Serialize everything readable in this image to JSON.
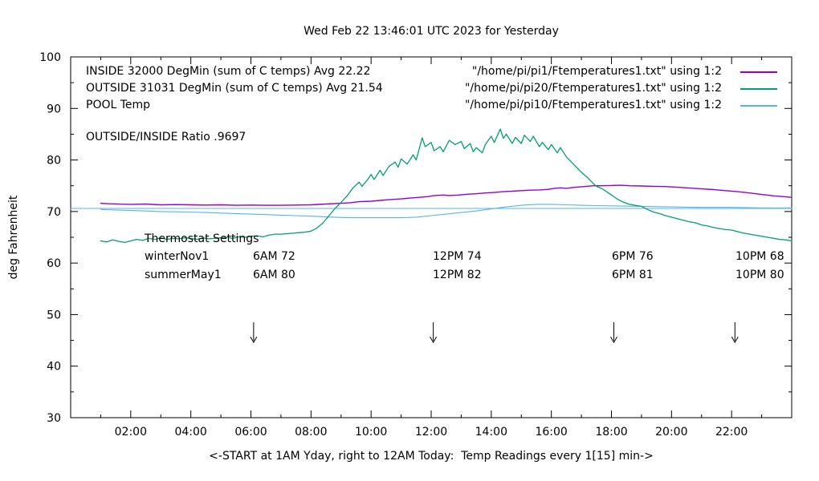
{
  "title": "Wed Feb 22 13:46:01 UTC 2023 for Yesterday",
  "axes": {
    "y_label": "deg Fahrenheit",
    "x_label": "<-START at 1AM Yday, right to 12AM Today:  Temp Readings every 1[15] min->"
  },
  "legend": {
    "rows": [
      {
        "left": "INSIDE 32000 DegMin (sum of C temps) Avg 22.22",
        "right": "\"/home/pi/pi1/Ftemperatures1.txt\" using 1:2"
      },
      {
        "left": "OUTSIDE 31031 DegMin (sum of C temps) Avg 21.54",
        "right": "\"/home/pi/pi20/Ftemperatures1.txt\" using 1:2"
      },
      {
        "left": "POOL Temp",
        "right": "\"/home/pi/pi10/Ftemperatures1.txt\" using 1:2"
      }
    ]
  },
  "annotations": {
    "ratio": "OUTSIDE/INSIDE Ratio .9697",
    "thermostat_title": "Thermostat Settings",
    "rows": [
      {
        "label": "winterNov1",
        "cols": [
          "6AM 72",
          "12PM 74",
          "6PM 76",
          "10PM 68"
        ]
      },
      {
        "label": "summerMay1",
        "cols": [
          "6AM 80",
          "12PM 82",
          "6PM 81",
          "10PM 80"
        ]
      }
    ]
  },
  "colors": {
    "inside": "#9400D3",
    "outside": "#009E73",
    "pool": "#56B4E9",
    "axis": "#000000"
  },
  "chart_data": {
    "type": "line",
    "title": "Wed Feb 22 13:46:01 UTC 2023 for Yesterday",
    "xlabel": "<-START at 1AM Yday, right to 12AM Today:  Temp Readings every 1[15] min->",
    "ylabel": "deg Fahrenheit",
    "x_unit": "hour of day (1 = 1AM yesterday, 24 = 12AM today)",
    "xlim": [
      0,
      24
    ],
    "ylim": [
      30,
      100
    ],
    "grid": false,
    "legend_position": "top inside",
    "x_major_ticks": [
      {
        "v": 2,
        "label": "02:00"
      },
      {
        "v": 4,
        "label": "04:00"
      },
      {
        "v": 6,
        "label": "06:00"
      },
      {
        "v": 8,
        "label": "08:00"
      },
      {
        "v": 10,
        "label": "10:00"
      },
      {
        "v": 12,
        "label": "12:00"
      },
      {
        "v": 14,
        "label": "14:00"
      },
      {
        "v": 16,
        "label": "16:00"
      },
      {
        "v": 18,
        "label": "18:00"
      },
      {
        "v": 20,
        "label": "20:00"
      },
      {
        "v": 22,
        "label": "22:00"
      }
    ],
    "x_minor_ticks": [
      1,
      3,
      5,
      7,
      9,
      11,
      13,
      15,
      17,
      19,
      21,
      23
    ],
    "y_major_ticks": [
      {
        "v": 30,
        "label": "30"
      },
      {
        "v": 40,
        "label": "40"
      },
      {
        "v": 50,
        "label": "50"
      },
      {
        "v": 60,
        "label": "60"
      },
      {
        "v": 70,
        "label": "70"
      },
      {
        "v": 80,
        "label": "80"
      },
      {
        "v": 90,
        "label": "90"
      },
      {
        "v": 100,
        "label": "100"
      }
    ],
    "y_minor_ticks": [
      35,
      45,
      55,
      65,
      75,
      85,
      95
    ],
    "series": [
      {
        "name": "POOL reference line",
        "color": "#56B4E9",
        "width": 1.1,
        "points": [
          [
            0,
            70.6
          ],
          [
            24,
            70.6
          ]
        ]
      },
      {
        "name": "INSIDE",
        "color": "#9400D3",
        "width": 1.4,
        "points": [
          [
            1,
            71.6
          ],
          [
            1.3,
            71.5
          ],
          [
            2,
            71.4
          ],
          [
            2.5,
            71.45
          ],
          [
            3,
            71.3
          ],
          [
            3.5,
            71.35
          ],
          [
            4,
            71.3
          ],
          [
            4.5,
            71.25
          ],
          [
            5,
            71.3
          ],
          [
            5.5,
            71.2
          ],
          [
            6,
            71.25
          ],
          [
            6.5,
            71.2
          ],
          [
            7,
            71.2
          ],
          [
            7.5,
            71.25
          ],
          [
            8,
            71.3
          ],
          [
            8.5,
            71.45
          ],
          [
            9,
            71.6
          ],
          [
            9.3,
            71.7
          ],
          [
            9.6,
            71.9
          ],
          [
            10,
            72.0
          ],
          [
            10.3,
            72.15
          ],
          [
            10.6,
            72.3
          ],
          [
            11,
            72.45
          ],
          [
            11.3,
            72.6
          ],
          [
            11.6,
            72.75
          ],
          [
            11.9,
            72.9
          ],
          [
            12.1,
            73.1
          ],
          [
            12.4,
            73.2
          ],
          [
            12.6,
            73.1
          ],
          [
            12.9,
            73.2
          ],
          [
            13.2,
            73.35
          ],
          [
            13.5,
            73.45
          ],
          [
            13.8,
            73.6
          ],
          [
            14.1,
            73.7
          ],
          [
            14.4,
            73.85
          ],
          [
            14.7,
            73.95
          ],
          [
            15,
            74.05
          ],
          [
            15.3,
            74.15
          ],
          [
            15.6,
            74.2
          ],
          [
            15.9,
            74.3
          ],
          [
            16.1,
            74.5
          ],
          [
            16.3,
            74.6
          ],
          [
            16.5,
            74.5
          ],
          [
            16.8,
            74.7
          ],
          [
            17.1,
            74.85
          ],
          [
            17.4,
            75.0
          ],
          [
            17.7,
            75.0
          ],
          [
            18,
            75.05
          ],
          [
            18.3,
            75.1
          ],
          [
            18.6,
            75.0
          ],
          [
            19,
            74.95
          ],
          [
            19.4,
            74.9
          ],
          [
            19.8,
            74.85
          ],
          [
            20.2,
            74.7
          ],
          [
            20.6,
            74.55
          ],
          [
            21,
            74.4
          ],
          [
            21.4,
            74.25
          ],
          [
            21.8,
            74.05
          ],
          [
            22.2,
            73.85
          ],
          [
            22.6,
            73.6
          ],
          [
            23,
            73.3
          ],
          [
            23.4,
            73.05
          ],
          [
            23.7,
            72.9
          ],
          [
            24,
            72.75
          ]
        ]
      },
      {
        "name": "POOL",
        "color": "#56B4E9",
        "width": 1.1,
        "points": [
          [
            1,
            70.4
          ],
          [
            1.5,
            70.3
          ],
          [
            2,
            70.2
          ],
          [
            2.5,
            70.1
          ],
          [
            3,
            70.0
          ],
          [
            3.5,
            69.95
          ],
          [
            4,
            69.9
          ],
          [
            4.5,
            69.8
          ],
          [
            5,
            69.7
          ],
          [
            5.5,
            69.6
          ],
          [
            6,
            69.5
          ],
          [
            6.5,
            69.4
          ],
          [
            7,
            69.3
          ],
          [
            7.5,
            69.2
          ],
          [
            8,
            69.1
          ],
          [
            8.5,
            68.95
          ],
          [
            9,
            68.85
          ],
          [
            9.5,
            68.8
          ],
          [
            10,
            68.8
          ],
          [
            10.5,
            68.8
          ],
          [
            11,
            68.8
          ],
          [
            11.5,
            68.9
          ],
          [
            12,
            69.2
          ],
          [
            12.5,
            69.5
          ],
          [
            13,
            69.8
          ],
          [
            13.5,
            70.1
          ],
          [
            14,
            70.5
          ],
          [
            14.5,
            70.9
          ],
          [
            15,
            71.2
          ],
          [
            15.5,
            71.4
          ],
          [
            16,
            71.4
          ],
          [
            16.5,
            71.3
          ],
          [
            17,
            71.2
          ],
          [
            17.5,
            71.15
          ],
          [
            18,
            71.1
          ],
          [
            18.5,
            71.05
          ],
          [
            19,
            71.0
          ],
          [
            19.5,
            70.95
          ],
          [
            20,
            70.9
          ],
          [
            20.5,
            70.85
          ],
          [
            21,
            70.8
          ],
          [
            21.5,
            70.8
          ],
          [
            22,
            70.8
          ],
          [
            22.5,
            70.75
          ],
          [
            23,
            70.7
          ],
          [
            23.5,
            70.7
          ],
          [
            24,
            70.7
          ]
        ]
      },
      {
        "name": "OUTSIDE",
        "color": "#009E73",
        "width": 1.3,
        "points": [
          [
            1,
            64.3
          ],
          [
            1.2,
            64.1
          ],
          [
            1.4,
            64.5
          ],
          [
            1.6,
            64.2
          ],
          [
            1.8,
            64.0
          ],
          [
            2,
            64.3
          ],
          [
            2.2,
            64.6
          ],
          [
            2.4,
            64.4
          ],
          [
            2.6,
            64.8
          ],
          [
            2.8,
            64.6
          ],
          [
            3,
            64.9
          ],
          [
            3.2,
            64.6
          ],
          [
            3.4,
            64.8
          ],
          [
            3.6,
            64.7
          ],
          [
            3.8,
            64.9
          ],
          [
            4,
            64.8
          ],
          [
            4.2,
            64.6
          ],
          [
            4.4,
            64.9
          ],
          [
            4.6,
            64.7
          ],
          [
            4.8,
            64.8
          ],
          [
            5,
            64.9
          ],
          [
            5.2,
            65.0
          ],
          [
            5.4,
            64.8
          ],
          [
            5.6,
            65.1
          ],
          [
            5.8,
            65.0
          ],
          [
            6,
            65.2
          ],
          [
            6.2,
            65.3
          ],
          [
            6.4,
            65.1
          ],
          [
            6.6,
            65.4
          ],
          [
            6.8,
            65.6
          ],
          [
            7,
            65.6
          ],
          [
            7.2,
            65.7
          ],
          [
            7.4,
            65.8
          ],
          [
            7.6,
            65.9
          ],
          [
            7.8,
            66.0
          ],
          [
            8,
            66.2
          ],
          [
            8.2,
            66.8
          ],
          [
            8.4,
            67.8
          ],
          [
            8.6,
            69.2
          ],
          [
            8.8,
            70.6
          ],
          [
            9,
            71.8
          ],
          [
            9.2,
            73.0
          ],
          [
            9.4,
            74.6
          ],
          [
            9.6,
            75.7
          ],
          [
            9.7,
            74.9
          ],
          [
            9.9,
            76.3
          ],
          [
            10,
            77.2
          ],
          [
            10.1,
            76.2
          ],
          [
            10.3,
            78.0
          ],
          [
            10.4,
            77.0
          ],
          [
            10.6,
            78.8
          ],
          [
            10.8,
            79.6
          ],
          [
            10.9,
            78.6
          ],
          [
            11,
            80.2
          ],
          [
            11.2,
            79.2
          ],
          [
            11.4,
            81.0
          ],
          [
            11.5,
            80.0
          ],
          [
            11.7,
            84.3
          ],
          [
            11.8,
            82.6
          ],
          [
            12,
            83.4
          ],
          [
            12.1,
            81.8
          ],
          [
            12.3,
            82.6
          ],
          [
            12.4,
            81.6
          ],
          [
            12.6,
            83.8
          ],
          [
            12.8,
            83.0
          ],
          [
            13,
            83.6
          ],
          [
            13.1,
            82.2
          ],
          [
            13.3,
            83.2
          ],
          [
            13.4,
            81.6
          ],
          [
            13.5,
            82.4
          ],
          [
            13.7,
            81.4
          ],
          [
            13.8,
            83.0
          ],
          [
            14,
            84.6
          ],
          [
            14.1,
            83.4
          ],
          [
            14.3,
            86.0
          ],
          [
            14.4,
            84.2
          ],
          [
            14.5,
            85.0
          ],
          [
            14.7,
            83.2
          ],
          [
            14.8,
            84.4
          ],
          [
            15,
            83.2
          ],
          [
            15.1,
            84.8
          ],
          [
            15.3,
            83.6
          ],
          [
            15.4,
            84.6
          ],
          [
            15.6,
            82.6
          ],
          [
            15.7,
            83.4
          ],
          [
            15.9,
            82.0
          ],
          [
            16,
            83.0
          ],
          [
            16.2,
            81.4
          ],
          [
            16.3,
            82.4
          ],
          [
            16.5,
            80.6
          ],
          [
            16.7,
            79.4
          ],
          [
            16.9,
            78.2
          ],
          [
            17,
            77.6
          ],
          [
            17.2,
            76.6
          ],
          [
            17.4,
            75.4
          ],
          [
            17.5,
            74.9
          ],
          [
            17.7,
            74.4
          ],
          [
            17.9,
            73.6
          ],
          [
            18,
            73.2
          ],
          [
            18.2,
            72.4
          ],
          [
            18.4,
            71.8
          ],
          [
            18.6,
            71.4
          ],
          [
            18.8,
            71.2
          ],
          [
            19,
            71.0
          ],
          [
            19.2,
            70.4
          ],
          [
            19.4,
            69.9
          ],
          [
            19.6,
            69.6
          ],
          [
            19.8,
            69.2
          ],
          [
            20,
            68.9
          ],
          [
            20.2,
            68.6
          ],
          [
            20.4,
            68.3
          ],
          [
            20.6,
            68.0
          ],
          [
            20.8,
            67.8
          ],
          [
            21,
            67.4
          ],
          [
            21.2,
            67.2
          ],
          [
            21.4,
            66.9
          ],
          [
            21.6,
            66.7
          ],
          [
            21.8,
            66.5
          ],
          [
            22,
            66.4
          ],
          [
            22.2,
            66.1
          ],
          [
            22.4,
            65.8
          ],
          [
            22.6,
            65.6
          ],
          [
            22.8,
            65.4
          ],
          [
            23,
            65.2
          ],
          [
            23.2,
            65.0
          ],
          [
            23.4,
            64.8
          ],
          [
            23.6,
            64.6
          ],
          [
            23.8,
            64.5
          ],
          [
            24,
            64.3
          ]
        ]
      }
    ],
    "arrows": [
      {
        "x": 6.09,
        "y_from": 48.5,
        "y_to": 44.6
      },
      {
        "x": 12.07,
        "y_from": 48.5,
        "y_to": 44.6
      },
      {
        "x": 18.08,
        "y_from": 48.5,
        "y_to": 44.6
      },
      {
        "x": 22.11,
        "y_from": 48.5,
        "y_to": 44.6
      }
    ]
  }
}
